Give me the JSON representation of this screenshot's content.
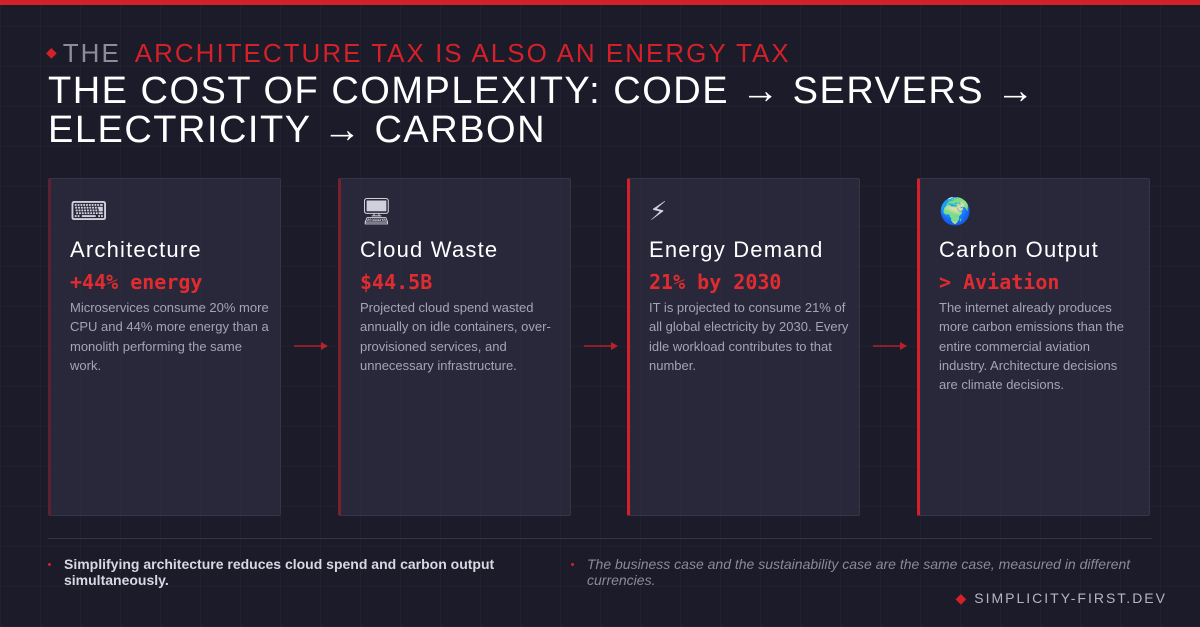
{
  "eyebrow": {
    "prefix": "THE",
    "text": "ARCHITECTURE TAX IS ALSO AN ENERGY TAX"
  },
  "title": "THE COST OF COMPLEXITY: CODE → SERVERS → ELECTRICITY → CARBON",
  "cards": [
    {
      "icon": "⌨",
      "heading": "Architecture",
      "stat": "+44% energy",
      "description": "Microservices consume 20% more CPU and 44% more energy than a monolith performing the same work."
    },
    {
      "icon": "🖥",
      "heading": "Cloud Waste",
      "stat": "$44.5B",
      "description": "Projected cloud spend wasted annually on idle containers, over-provisioned services, and unnecessary infrastructure."
    },
    {
      "icon": "⚡",
      "heading": "Energy Demand",
      "stat": "21% by 2030",
      "description": "IT is projected to consume 21% of all global electricity by 2030. Every idle workload contributes to that number."
    },
    {
      "icon": "🌍",
      "heading": "Carbon Output",
      "stat": "> Aviation",
      "description": "The internet already produces more carbon emissions than the entire commercial aviation industry. Architecture decisions are climate decisions."
    }
  ],
  "footer": {
    "notes": [
      "Simplifying architecture reduces cloud spend and carbon output simultaneously.",
      "The business case and the sustainability case are the same case, measured in different currencies."
    ],
    "brand": "SIMPLICITY-FIRST.DEV"
  }
}
